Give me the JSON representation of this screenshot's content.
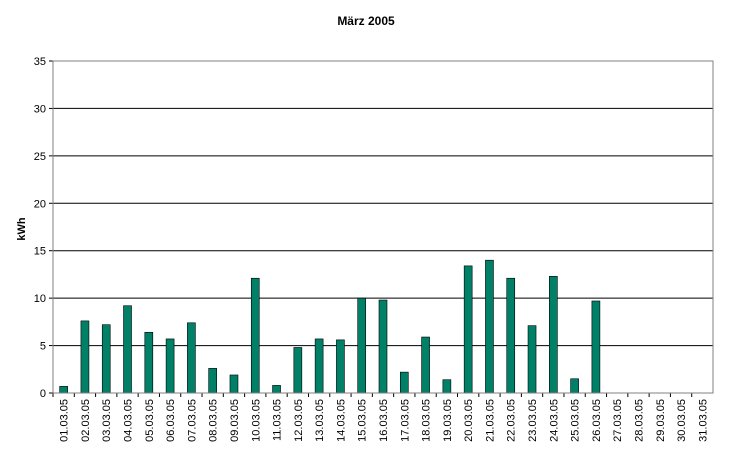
{
  "chart_data": {
    "type": "bar",
    "title": "März 2005",
    "xlabel": "",
    "ylabel": "kWh",
    "ylim": [
      0,
      35
    ],
    "yticks": [
      0,
      5,
      10,
      15,
      20,
      25,
      30,
      35
    ],
    "grid": true,
    "legend": "none",
    "bar_color": "#008066",
    "categories": [
      "01.03.05",
      "02.03.05",
      "03.03.05",
      "04.03.05",
      "05.03.05",
      "06.03.05",
      "07.03.05",
      "08.03.05",
      "09.03.05",
      "10.03.05",
      "11.03.05",
      "12.03.05",
      "13.03.05",
      "14.03.05",
      "15.03.05",
      "16.03.05",
      "17.03.05",
      "18.03.05",
      "19.03.05",
      "20.03.05",
      "21.03.05",
      "22.03.05",
      "23.03.05",
      "24.03.05",
      "25.03.05",
      "26.03.05",
      "27.03.05",
      "28.03.05",
      "29.03.05",
      "30.03.05",
      "31.03.05"
    ],
    "values": [
      0.7,
      7.6,
      7.2,
      9.2,
      6.4,
      5.7,
      7.4,
      2.6,
      1.9,
      12.1,
      0.8,
      4.8,
      5.7,
      5.6,
      10.0,
      9.8,
      2.2,
      5.9,
      1.4,
      13.4,
      14.0,
      12.1,
      7.1,
      12.3,
      1.5,
      9.7,
      0,
      0,
      0,
      0,
      0
    ]
  }
}
